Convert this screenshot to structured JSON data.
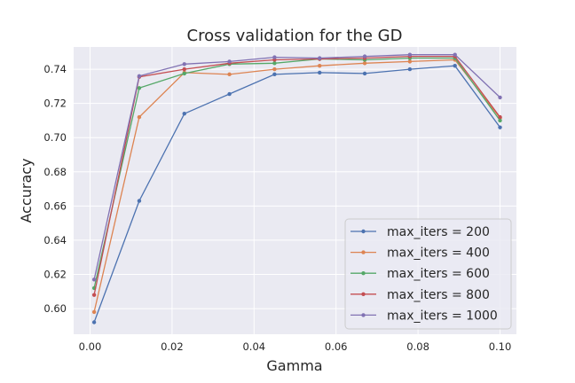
{
  "chart_data": {
    "type": "line",
    "title": "Cross validation for the GD",
    "xlabel": "Gamma",
    "ylabel": "Accuracy",
    "xlim": [
      -0.004,
      0.104
    ],
    "ylim": [
      0.585,
      0.753
    ],
    "xticks": [
      0.0,
      0.02,
      0.04,
      0.06,
      0.08,
      0.1
    ],
    "xtick_labels": [
      "0.00",
      "0.02",
      "0.04",
      "0.06",
      "0.08",
      "0.10"
    ],
    "yticks": [
      0.6,
      0.62,
      0.64,
      0.66,
      0.68,
      0.7,
      0.72,
      0.74
    ],
    "ytick_labels": [
      "0.60",
      "0.62",
      "0.64",
      "0.66",
      "0.68",
      "0.70",
      "0.72",
      "0.74"
    ],
    "grid": true,
    "legend_position": "lower-right",
    "x": [
      0.001,
      0.012,
      0.023,
      0.034,
      0.045,
      0.056,
      0.067,
      0.078,
      0.089,
      0.1
    ],
    "series": [
      {
        "name": "max_iters = 200",
        "color": "#4c72b0",
        "values": [
          0.592,
          0.663,
          0.714,
          0.7255,
          0.737,
          0.738,
          0.7375,
          0.74,
          0.742,
          0.706
        ]
      },
      {
        "name": "max_iters = 400",
        "color": "#dd8452",
        "values": [
          0.598,
          0.712,
          0.738,
          0.737,
          0.74,
          0.742,
          0.7435,
          0.7445,
          0.7455,
          0.7115
        ]
      },
      {
        "name": "max_iters = 600",
        "color": "#55a868",
        "values": [
          0.612,
          0.729,
          0.7375,
          0.743,
          0.7435,
          0.746,
          0.7455,
          0.7465,
          0.7465,
          0.71
        ]
      },
      {
        "name": "max_iters = 800",
        "color": "#c44e52",
        "values": [
          0.608,
          0.7355,
          0.74,
          0.7435,
          0.7455,
          0.746,
          0.7465,
          0.7475,
          0.7475,
          0.712
        ]
      },
      {
        "name": "max_iters = 1000",
        "color": "#8172b3",
        "values": [
          0.617,
          0.736,
          0.743,
          0.7445,
          0.747,
          0.7465,
          0.7475,
          0.7485,
          0.7485,
          0.7235
        ]
      }
    ]
  }
}
